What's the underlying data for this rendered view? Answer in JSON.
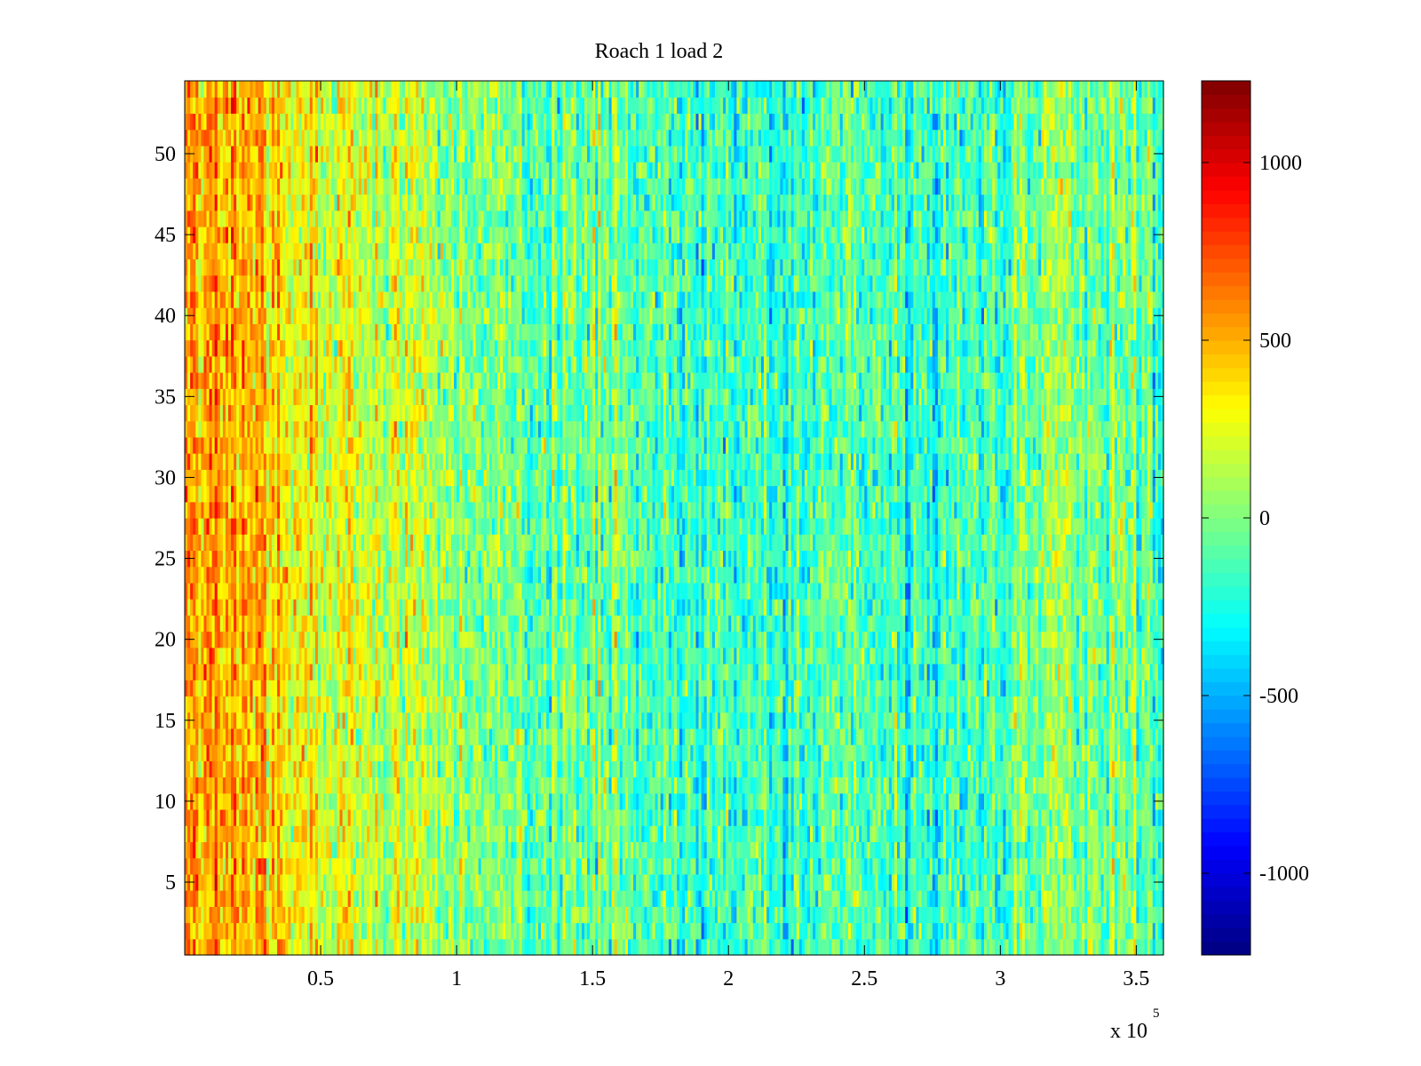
{
  "chart_data": {
    "type": "heatmap",
    "title": "Roach 1 load 2",
    "xlabel": "",
    "ylabel": "",
    "x_exponent_label": "x 10",
    "x_exponent_power": "5",
    "xlim": [
      0,
      360000
    ],
    "ylim": [
      0.5,
      54.5
    ],
    "x_ticks": [
      0.5,
      1,
      1.5,
      2,
      2.5,
      3,
      3.5
    ],
    "x_tick_labels": [
      "0.5",
      "1",
      "1.5",
      "2",
      "2.5",
      "3",
      "3.5"
    ],
    "y_ticks": [
      5,
      10,
      15,
      20,
      25,
      30,
      35,
      40,
      45,
      50
    ],
    "y_tick_labels": [
      "5",
      "10",
      "15",
      "20",
      "25",
      "30",
      "35",
      "40",
      "45",
      "50"
    ],
    "n_rows": 54,
    "colormap": "jet",
    "clim": [
      -1230,
      1230
    ],
    "colorbar": {
      "ticks": [
        -1000,
        -500,
        0,
        500,
        1000
      ],
      "tick_labels": [
        "-1000",
        "-500",
        "0",
        "500",
        "1000"
      ]
    },
    "mean_profile": {
      "x": [
        0,
        10000,
        20000,
        30000,
        40000,
        60000,
        80000,
        90000,
        100000,
        130000,
        150000,
        170000,
        190000,
        220000,
        250000,
        280000,
        300000,
        320000,
        330000,
        345000,
        360000
      ],
      "value": [
        450,
        520,
        480,
        380,
        300,
        230,
        170,
        80,
        0,
        -60,
        -20,
        -80,
        -140,
        -150,
        -110,
        -180,
        -100,
        20,
        60,
        -40,
        -100
      ]
    },
    "noise_amplitude": 260
  }
}
